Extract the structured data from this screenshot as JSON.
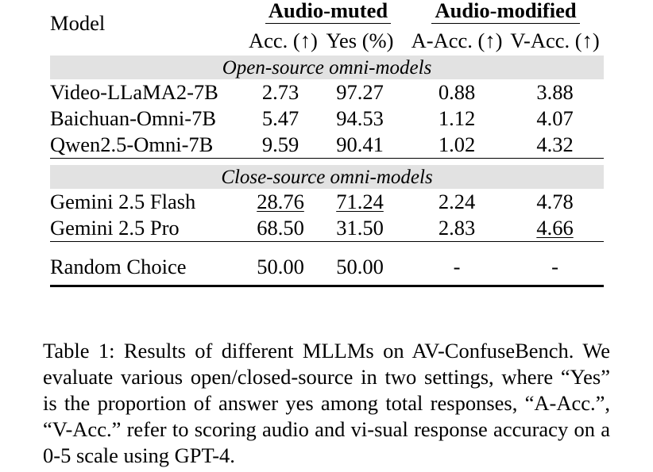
{
  "table": {
    "header": {
      "model_label": "Model",
      "group_muted": "Audio-muted",
      "group_modified": "Audio-modified",
      "acc_label": "Acc. (↑)",
      "yes_label": "Yes (%)",
      "a_acc_label": "A-Acc. (↑)",
      "v_acc_label": "V-Acc. (↑)"
    },
    "sections": [
      {
        "title": "Open-source omni-models",
        "rows": [
          {
            "model": "Video-LLaMA2-7B",
            "acc": "2.73",
            "yes": "97.27",
            "a_acc": "0.88",
            "v_acc": "3.88"
          },
          {
            "model": "Baichuan-Omni-7B",
            "acc": "5.47",
            "yes": "94.53",
            "a_acc": "1.12",
            "v_acc": "4.07"
          },
          {
            "model": "Qwen2.5-Omni-7B",
            "acc": "9.59",
            "yes": "90.41",
            "a_acc": "1.02",
            "v_acc": "4.32"
          }
        ]
      },
      {
        "title": "Close-source omni-models",
        "rows": [
          {
            "model": "Gemini 2.5 Flash",
            "acc": "28.76",
            "yes": "71.24",
            "a_acc": "2.24",
            "v_acc": "4.78"
          },
          {
            "model": "Gemini 2.5 Pro",
            "acc": "68.50",
            "yes": "31.50",
            "a_acc": "2.83",
            "v_acc": "4.66"
          }
        ]
      }
    ],
    "baseline": {
      "model": "Random Choice",
      "acc": "50.00",
      "yes": "50.00",
      "a_acc": "-",
      "v_acc": "-"
    }
  },
  "caption": "Table 1: Results of different MLLMs on AV-ConfuseBench. We evaluate various open/closed-source in two settings, where “Yes” is the proportion of answer yes among total responses, “A-Acc.”, “V-Acc.” refer to scoring audio and vi-sual response accuracy on a 0-5 scale using GPT-4."
}
